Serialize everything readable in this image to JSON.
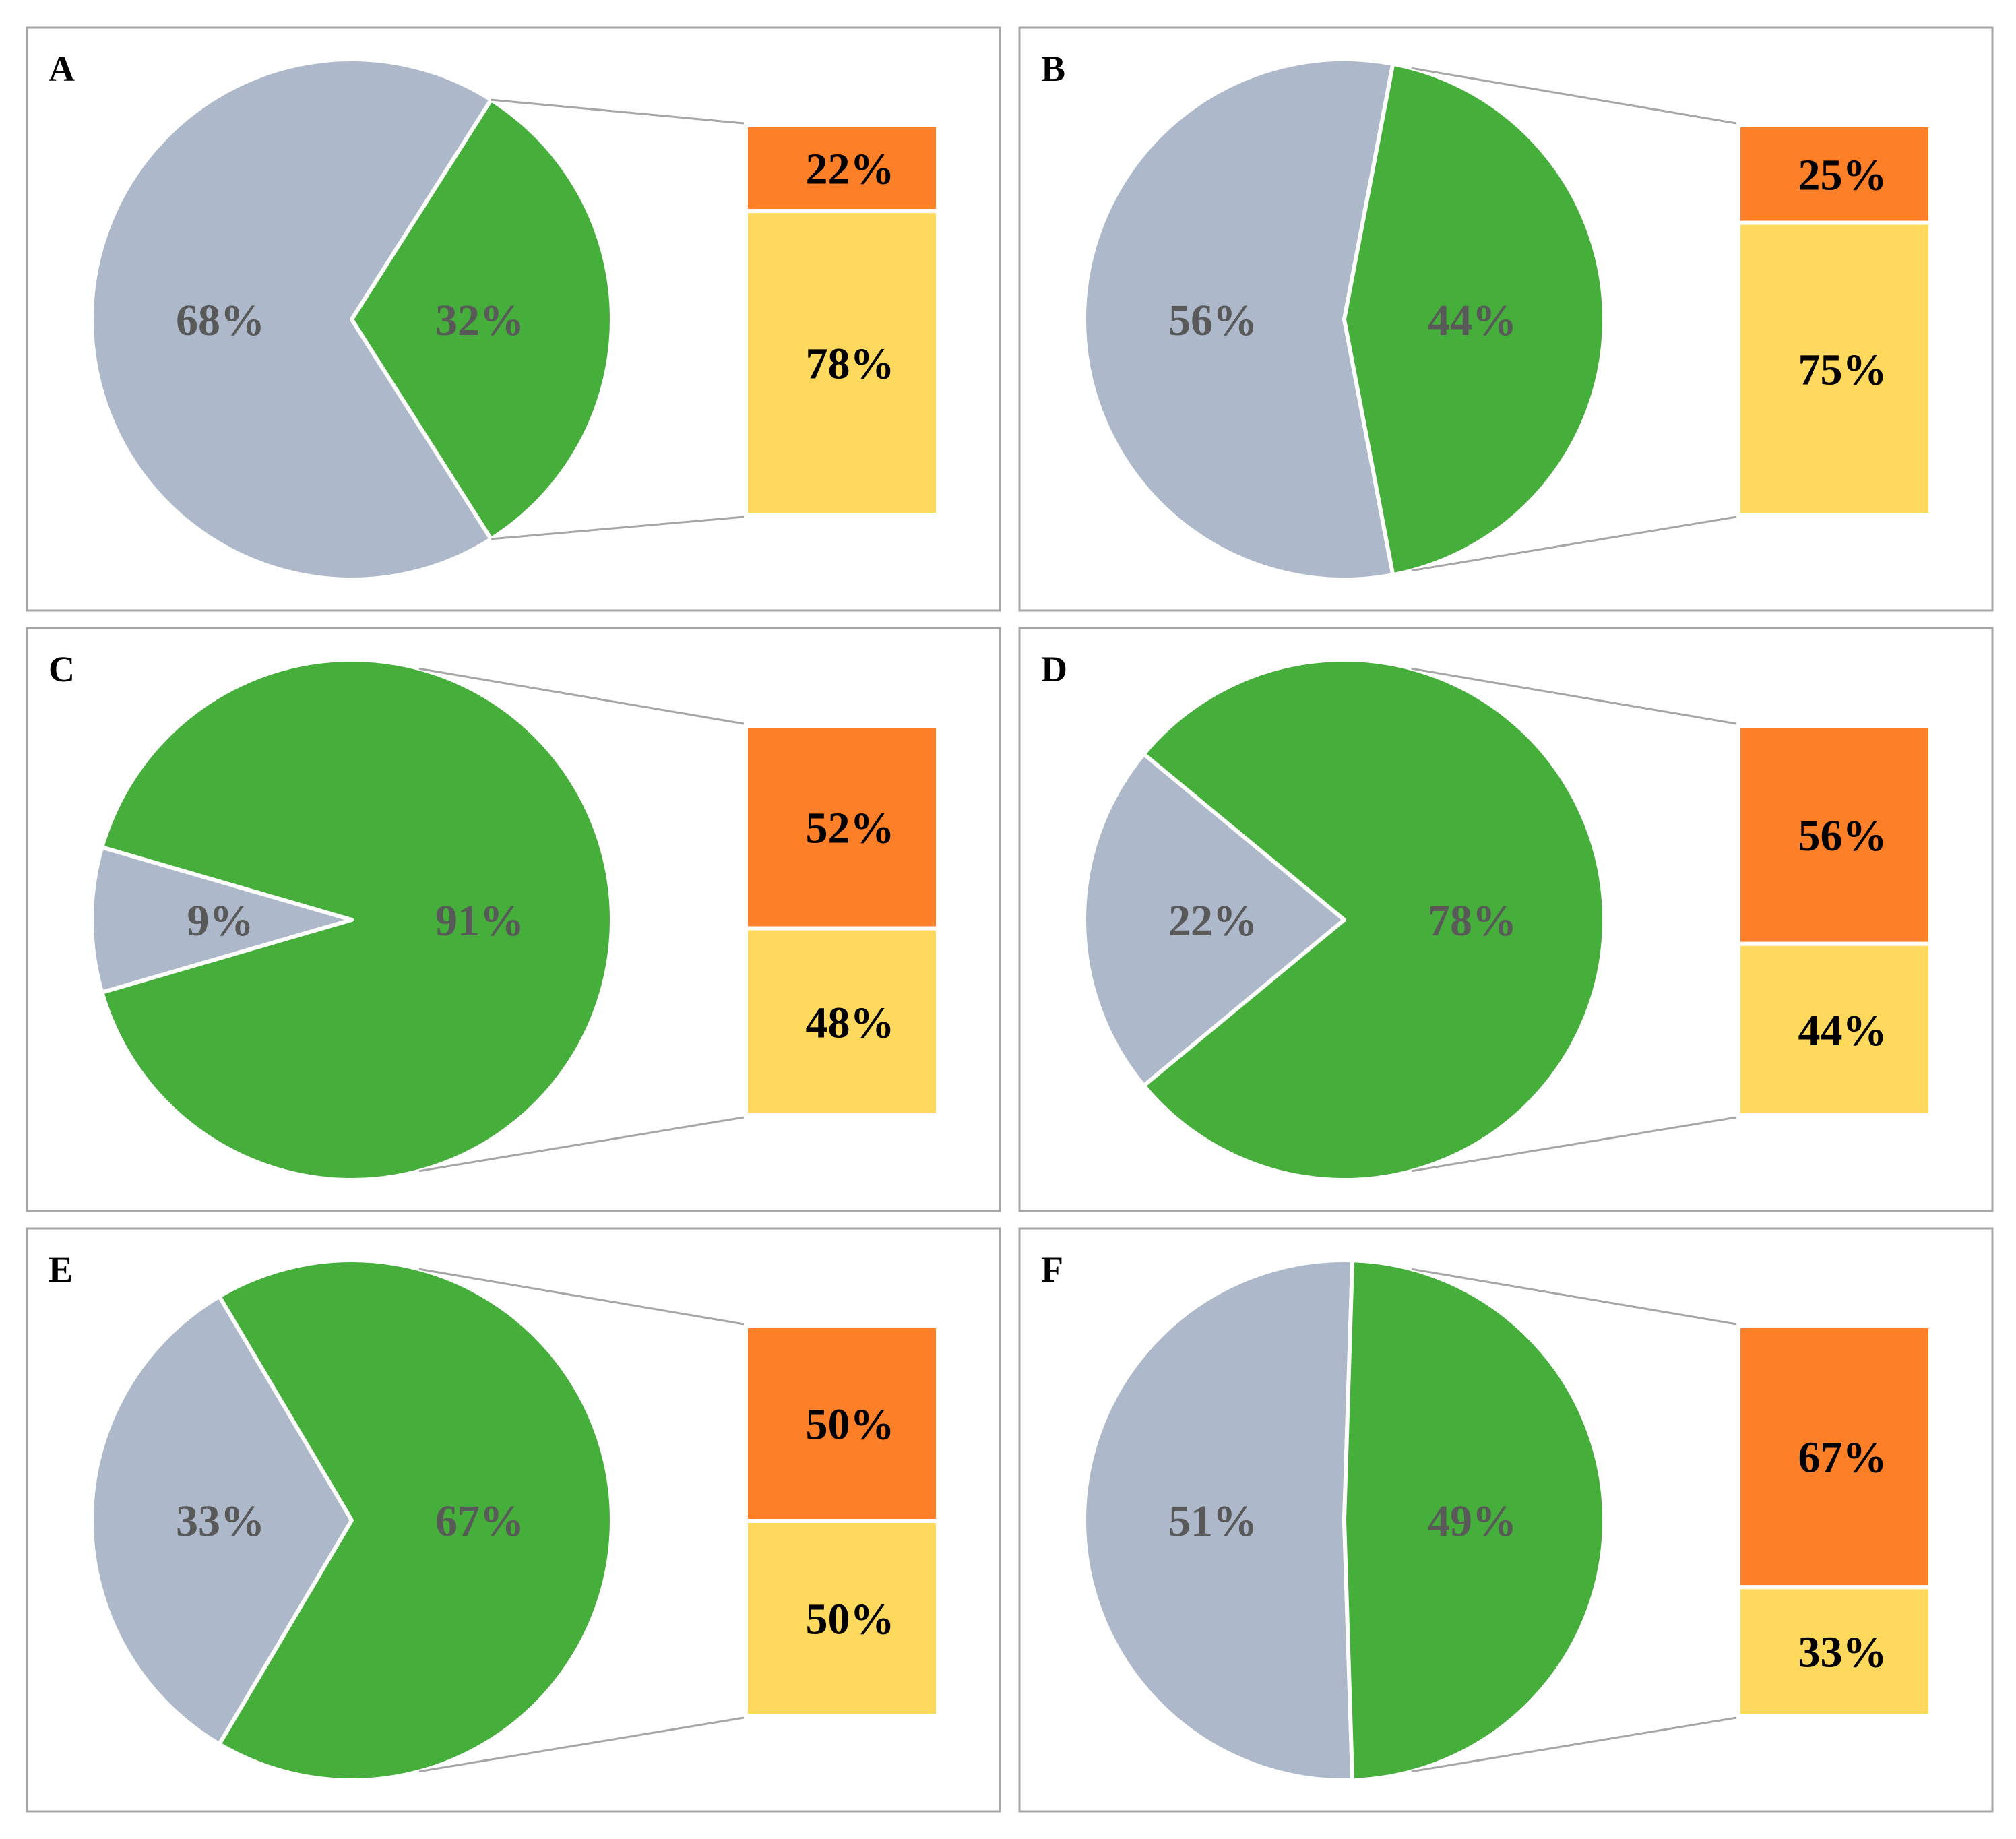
{
  "colors": {
    "pie_gray": "#adb9ca",
    "pie_green": "#46ae3b",
    "bar_orange": "#fd7f27",
    "bar_yellow": "#ffd95e"
  },
  "chart_data": [
    {
      "type": "pie",
      "panel": "A",
      "pie": [
        {
          "name": "gray",
          "value": 68,
          "label": "68%"
        },
        {
          "name": "green",
          "value": 32,
          "label": "32%"
        }
      ],
      "breakdown": [
        {
          "name": "orange",
          "value": 22,
          "label": "22%"
        },
        {
          "name": "yellow",
          "value": 78,
          "label": "78%"
        }
      ]
    },
    {
      "type": "pie",
      "panel": "B",
      "pie": [
        {
          "name": "gray",
          "value": 56,
          "label": "56%"
        },
        {
          "name": "green",
          "value": 44,
          "label": "44%"
        }
      ],
      "breakdown": [
        {
          "name": "orange",
          "value": 25,
          "label": "25%"
        },
        {
          "name": "yellow",
          "value": 75,
          "label": "75%"
        }
      ]
    },
    {
      "type": "pie",
      "panel": "C",
      "pie": [
        {
          "name": "gray",
          "value": 9,
          "label": "9%"
        },
        {
          "name": "green",
          "value": 91,
          "label": "91%"
        }
      ],
      "breakdown": [
        {
          "name": "orange",
          "value": 52,
          "label": "52%"
        },
        {
          "name": "yellow",
          "value": 48,
          "label": "48%"
        }
      ]
    },
    {
      "type": "pie",
      "panel": "D",
      "pie": [
        {
          "name": "gray",
          "value": 22,
          "label": "22%"
        },
        {
          "name": "green",
          "value": 78,
          "label": "78%"
        }
      ],
      "breakdown": [
        {
          "name": "orange",
          "value": 56,
          "label": "56%"
        },
        {
          "name": "yellow",
          "value": 44,
          "label": "44%"
        }
      ]
    },
    {
      "type": "pie",
      "panel": "E",
      "pie": [
        {
          "name": "gray",
          "value": 33,
          "label": "33%"
        },
        {
          "name": "green",
          "value": 67,
          "label": "67%"
        }
      ],
      "breakdown": [
        {
          "name": "orange",
          "value": 50,
          "label": "50%"
        },
        {
          "name": "yellow",
          "value": 50,
          "label": "50%"
        }
      ]
    },
    {
      "type": "pie",
      "panel": "F",
      "pie": [
        {
          "name": "gray",
          "value": 51,
          "label": "51%"
        },
        {
          "name": "green",
          "value": 49,
          "label": "49%"
        }
      ],
      "breakdown": [
        {
          "name": "orange",
          "value": 67,
          "label": "67%"
        },
        {
          "name": "yellow",
          "value": 33,
          "label": "33%"
        }
      ]
    }
  ]
}
